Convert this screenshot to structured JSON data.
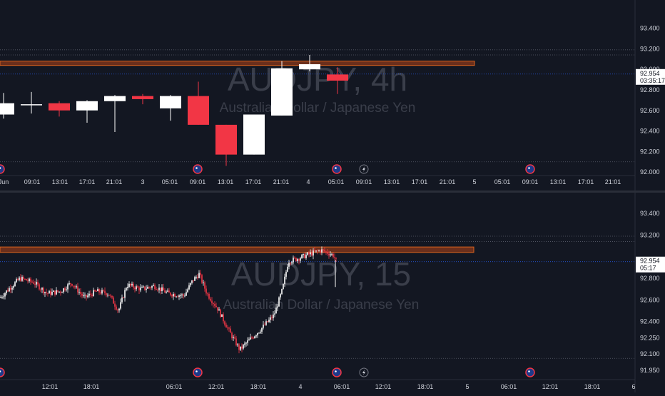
{
  "theme": {
    "background": "#131722",
    "up_color": "#ffffff",
    "down_color": "#f23645",
    "zone_fill": "#6b2f1c",
    "zone_border": "#d9631e",
    "grid_line": "#2a2e39",
    "dotted_line": "#5a5e6b",
    "price_line": "#2962ff"
  },
  "chart_data": [
    {
      "type": "candlestick",
      "symbol_watermark": "AUDJPY, 4h",
      "name_watermark": "Australian Dollar / Japanese Yen",
      "x_ticks": [
        "Jun",
        "09:01",
        "13:01",
        "17:01",
        "21:01",
        "3",
        "05:01",
        "09:01",
        "13:01",
        "17:01",
        "21:01",
        "4",
        "05:01",
        "09:01",
        "13:01",
        "17:01",
        "21:01",
        "5",
        "05:01",
        "09:01",
        "13:01",
        "17:01",
        "21:01"
      ],
      "y_ticks": [
        "93.400",
        "93.200",
        "93.000",
        "92.800",
        "92.600",
        "92.400",
        "92.200",
        "92.000"
      ],
      "ylim": [
        91.98,
        93.55
      ],
      "candles": [
        {
          "o": 92.56,
          "h": 92.77,
          "l": 92.52,
          "c": 92.67
        },
        {
          "o": 92.66,
          "h": 92.78,
          "l": 92.57,
          "c": 92.66
        },
        {
          "o": 92.67,
          "h": 92.69,
          "l": 92.54,
          "c": 92.6
        },
        {
          "o": 92.6,
          "h": 92.7,
          "l": 92.48,
          "c": 92.69
        },
        {
          "o": 92.69,
          "h": 92.75,
          "l": 92.39,
          "c": 92.74
        },
        {
          "o": 92.74,
          "h": 92.76,
          "l": 92.66,
          "c": 92.71
        },
        {
          "o": 92.62,
          "h": 92.75,
          "l": 92.5,
          "c": 92.74
        },
        {
          "o": 92.74,
          "h": 92.88,
          "l": 92.46,
          "c": 92.46
        },
        {
          "o": 92.46,
          "h": 92.46,
          "l": 92.06,
          "c": 92.17
        },
        {
          "o": 92.17,
          "h": 92.56,
          "l": 92.17,
          "c": 92.56
        },
        {
          "o": 92.55,
          "h": 93.08,
          "l": 92.55,
          "c": 93.01
        },
        {
          "o": 93.0,
          "h": 93.14,
          "l": 92.98,
          "c": 93.05
        },
        {
          "o": 92.95,
          "h": 93.02,
          "l": 92.76,
          "c": 92.89
        }
      ],
      "zone": {
        "low": 93.04,
        "high": 93.08
      },
      "dotted_levels": [
        93.19,
        93.14,
        92.1
      ],
      "last_price": "92.954",
      "countdown": "03:35:17"
    },
    {
      "type": "candlestick",
      "symbol_watermark": "AUDJPY, 15",
      "name_watermark": "Australian Dollar / Japanese Yen",
      "x_ticks": [
        "12:01",
        "18:01",
        "06:01",
        "12:01",
        "18:01",
        "4",
        "06:01",
        "12:01",
        "18:01",
        "5",
        "06:01",
        "12:01",
        "18:01",
        "6"
      ],
      "y_ticks": [
        "93.400",
        "93.200",
        "92.800",
        "92.600",
        "92.400",
        "92.250",
        "92.100",
        "91.950"
      ],
      "ylim": [
        91.89,
        93.5
      ],
      "zone": {
        "low": 93.04,
        "high": 93.09
      },
      "dotted_levels": [
        93.19,
        93.14,
        92.06
      ],
      "last_price": "92.954",
      "countdown": "05:17"
    }
  ],
  "event_markers": {
    "top": [
      "flag",
      "flag",
      "lightning",
      "flag",
      "flag"
    ],
    "bottom": [
      "flag",
      "flag",
      "lightning",
      "flag",
      "flag"
    ]
  }
}
